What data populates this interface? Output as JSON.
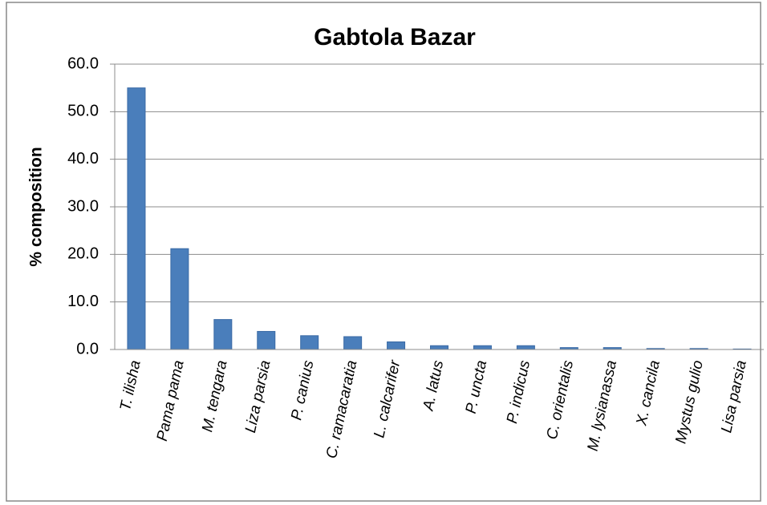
{
  "chart_data": {
    "type": "bar",
    "title": "Gabtola Bazar",
    "y_label": "% composition",
    "categories": [
      "T. ilisha",
      "Pama pama",
      "M. tengara",
      "Liza parsia",
      "P. canius",
      "C. ramacaratia",
      "L. calcarifer",
      "A. latus",
      "P. uncta",
      "P. indicus",
      "C. orientalis",
      "M. lysianassa",
      "X. cancila",
      "Mystus gulio",
      "Lisa parsia"
    ],
    "values": [
      55.0,
      21.2,
      6.3,
      3.8,
      2.9,
      2.7,
      1.6,
      0.8,
      0.8,
      0.8,
      0.4,
      0.4,
      0.2,
      0.2,
      0.1
    ],
    "color": "#4a7ebb",
    "ylim": [
      0,
      60
    ],
    "yticks": [
      {
        "value": 0,
        "label": "0.0"
      },
      {
        "value": 10,
        "label": "10.0"
      },
      {
        "value": 20,
        "label": "20.0"
      },
      {
        "value": 30,
        "label": "30.0"
      },
      {
        "value": 40,
        "label": "40.0"
      },
      {
        "value": 50,
        "label": "50.0"
      },
      {
        "value": 60,
        "label": "60.0"
      }
    ],
    "grid": true
  }
}
